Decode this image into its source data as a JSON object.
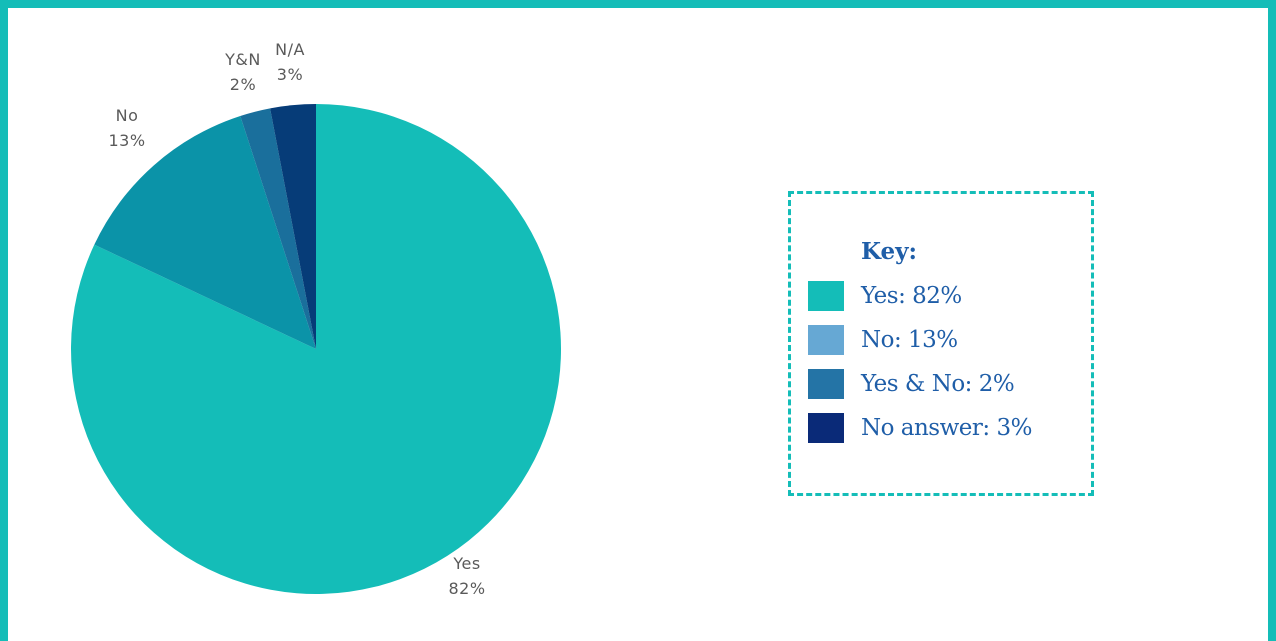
{
  "chart_data": {
    "type": "pie",
    "slices": [
      {
        "label": "Yes",
        "value": 82,
        "value_label": "82%",
        "color": "#14bdb8"
      },
      {
        "label": "No",
        "value": 13,
        "value_label": "13%",
        "color": "#0b93a8"
      },
      {
        "label": "Y&N",
        "value": 2,
        "value_label": "2%",
        "color": "#1a6f9c"
      },
      {
        "label": "N/A",
        "value": 3,
        "value_label": "3%",
        "color": "#063c78"
      }
    ],
    "legend": {
      "title": "Key:",
      "placement": "right",
      "entries": [
        {
          "label": "Yes: 82%",
          "color": "#14bdb8"
        },
        {
          "label": "No: 13%",
          "color": "#66a8d4"
        },
        {
          "label": "Yes & No: 2%",
          "color": "#2474a6"
        },
        {
          "label": "No answer: 3%",
          "color": "#0a2a78"
        }
      ]
    }
  },
  "colors": {
    "frame": "#14bdb8",
    "legend_text": "#1f5ea8",
    "label_text": "#5a5a5a"
  }
}
